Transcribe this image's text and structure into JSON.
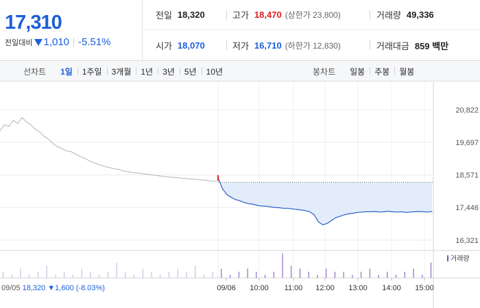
{
  "summary": {
    "current_price": "17,310",
    "change_label": "전일대비",
    "change_amount": "1,010",
    "change_rate": "-5.51%",
    "prev_close": {
      "label": "전일",
      "value": "18,320"
    },
    "high": {
      "label": "고가",
      "value": "18,470",
      "sub": "(상한가 23,800)"
    },
    "volume": {
      "label": "거래량",
      "value": "49,336"
    },
    "open": {
      "label": "시가",
      "value": "18,070"
    },
    "low": {
      "label": "저가",
      "value": "16,710",
      "sub": "(하한가 12,830)"
    },
    "trade_value": {
      "label": "거래대금",
      "value": "859 백만"
    },
    "colors": {
      "up": "#e01e1e",
      "down": "#1d5fd8"
    }
  },
  "tabs": {
    "line_chart_label": "선차트",
    "line_periods": [
      "1일",
      "1주일",
      "3개월",
      "1년",
      "3년",
      "5년",
      "10년"
    ],
    "active_line_period": 0,
    "candle_chart_label": "봉차트",
    "candle_periods": [
      "일봉",
      "주봉",
      "월봉"
    ]
  },
  "chart_data": {
    "type": "line",
    "title": "",
    "ylim": [
      16200,
      20900
    ],
    "y_ticks": [
      20822,
      19697,
      18571,
      17446,
      16321
    ],
    "y_tick_labels": [
      "20,822",
      "19,697",
      "18,571",
      "17,446",
      "16,321"
    ],
    "reference_line": 18320,
    "x_labels": [
      "09/06",
      "10:00",
      "11:00",
      "12:00",
      "13:00",
      "14:00",
      "15:00"
    ],
    "volume_label": "거래량",
    "prev_day_info": {
      "date": "09/05",
      "close": "18,320",
      "change": "1,600",
      "rate": "(-8.03%)"
    },
    "series": [
      {
        "role": "previous_day",
        "color": "#b5b5b5",
        "values": [
          20100,
          20300,
          20250,
          20450,
          20350,
          20550,
          20400,
          20300,
          20150,
          20050,
          19900,
          19800,
          19650,
          19550,
          19480,
          19400,
          19380,
          19300,
          19220,
          19150,
          19080,
          19000,
          18950,
          18900,
          18850,
          18820,
          18780,
          18760,
          18700,
          18680,
          18650,
          18640,
          18620,
          18600,
          18580,
          18560,
          18540,
          18520,
          18500,
          18490,
          18480,
          18460,
          18450,
          18430,
          18420,
          18410,
          18390,
          18380,
          18360,
          18340
        ]
      },
      {
        "role": "today",
        "color": "#2d62c9",
        "fill": "#e3ecfb",
        "values": [
          18470,
          18100,
          17900,
          17800,
          17720,
          17680,
          17620,
          17580,
          17560,
          17520,
          17500,
          17490,
          17470,
          17450,
          17440,
          17420,
          17420,
          17400,
          17380,
          17360,
          17340,
          17300,
          17200,
          16950,
          16850,
          16900,
          17000,
          17100,
          17150,
          17200,
          17230,
          17250,
          17280,
          17290,
          17300,
          17300,
          17310,
          17290,
          17300,
          17320,
          17300,
          17290,
          17300,
          17280,
          17290,
          17300,
          17310,
          17300,
          17290,
          17310
        ]
      }
    ],
    "volume_values": [
      2,
      1,
      3,
      1,
      2,
      4,
      1,
      2,
      1,
      3,
      2,
      1,
      2,
      5,
      2,
      1,
      3,
      2,
      1,
      2,
      3,
      2,
      4,
      1,
      2,
      3,
      1,
      2,
      3,
      2,
      1,
      2,
      8,
      4,
      3,
      2,
      1,
      3,
      2,
      2,
      1,
      2,
      3,
      1,
      2,
      1,
      2,
      3,
      1,
      5
    ]
  }
}
